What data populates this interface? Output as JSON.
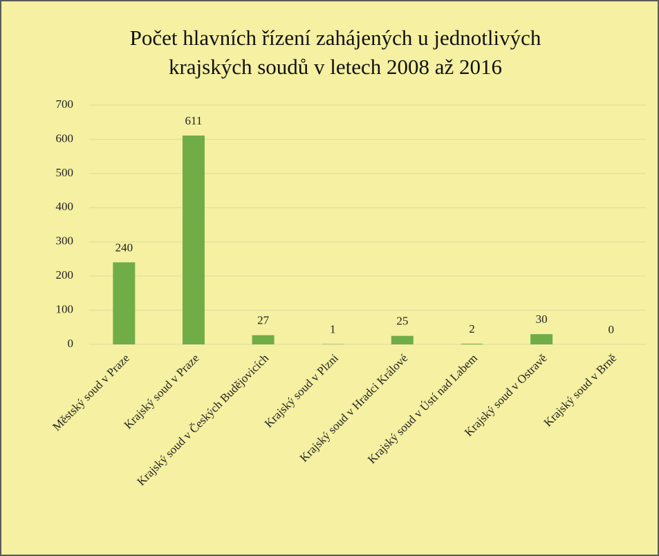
{
  "chart_data": {
    "type": "bar",
    "title": [
      "Počet hlavních řízení zahájených u jednotlivých",
      "krajských soudů v letech 2008 až 2016"
    ],
    "categories": [
      "Městský soud v Praze",
      "Krajský soud v Praze",
      "Krajský soud v Českých Budějovicích",
      "Krajský soud v Plzni",
      "Krajský soud v Hradci Králové",
      "Krajský soud v Ústí nad Labem",
      "Krajský soud v Ostravě",
      "Krajský soud v Brně"
    ],
    "values": [
      240,
      611,
      27,
      1,
      25,
      2,
      30,
      0
    ],
    "color": "#70ad47",
    "ylim": [
      0,
      700
    ],
    "yticks": [
      0,
      100,
      200,
      300,
      400,
      500,
      600,
      700
    ],
    "grid": true
  }
}
